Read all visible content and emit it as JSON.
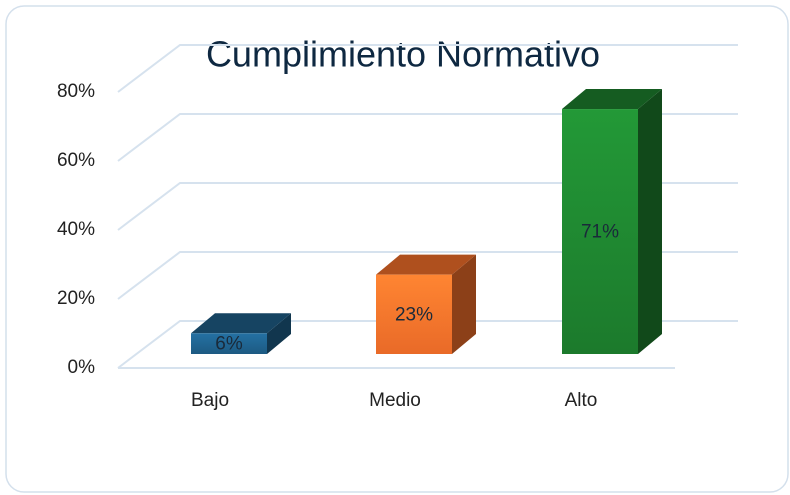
{
  "chart_data": {
    "type": "bar3d",
    "title": "Cumplimiento Normativo",
    "categories": [
      "Bajo",
      "Medio",
      "Alto"
    ],
    "values": [
      6,
      23,
      71
    ],
    "value_labels": [
      "6%",
      "23%",
      "71%"
    ],
    "colors": [
      "#1d5a82",
      "#e96a28",
      "#1c7a2c"
    ],
    "ylim": [
      0,
      80
    ],
    "yticks": [
      {
        "value": 0,
        "label": "0%"
      },
      {
        "value": 20,
        "label": "20%"
      },
      {
        "value": 40,
        "label": "40%"
      },
      {
        "value": 60,
        "label": "60%"
      },
      {
        "value": 80,
        "label": "80%"
      }
    ],
    "grid": true
  }
}
